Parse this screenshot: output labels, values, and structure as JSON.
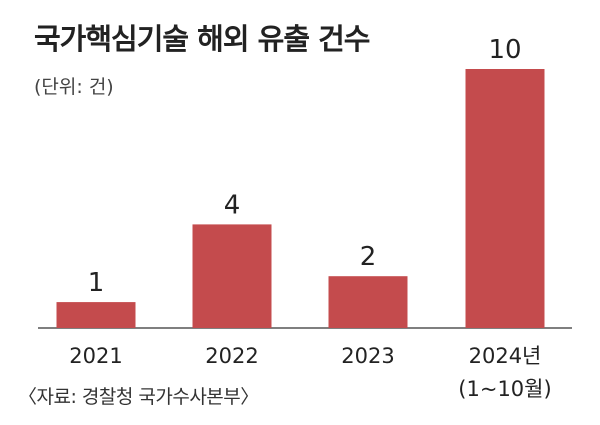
{
  "chart_data": {
    "type": "bar",
    "title": "국가핵심기술 해외 유출 건수",
    "unit_label": "(단위: 건)",
    "categories": [
      "2021",
      "2022",
      "2023",
      "2024년"
    ],
    "category_sublabels": [
      "",
      "",
      "",
      "(1~10월)"
    ],
    "values": [
      1,
      4,
      2,
      10
    ],
    "value_labels": [
      "1",
      "4",
      "2",
      "10"
    ],
    "ylim": [
      0,
      10
    ],
    "grid": false,
    "legend": "none",
    "bar_color": "#c44b4d",
    "source": "〈자료: 경찰청 국가수사본부〉"
  }
}
